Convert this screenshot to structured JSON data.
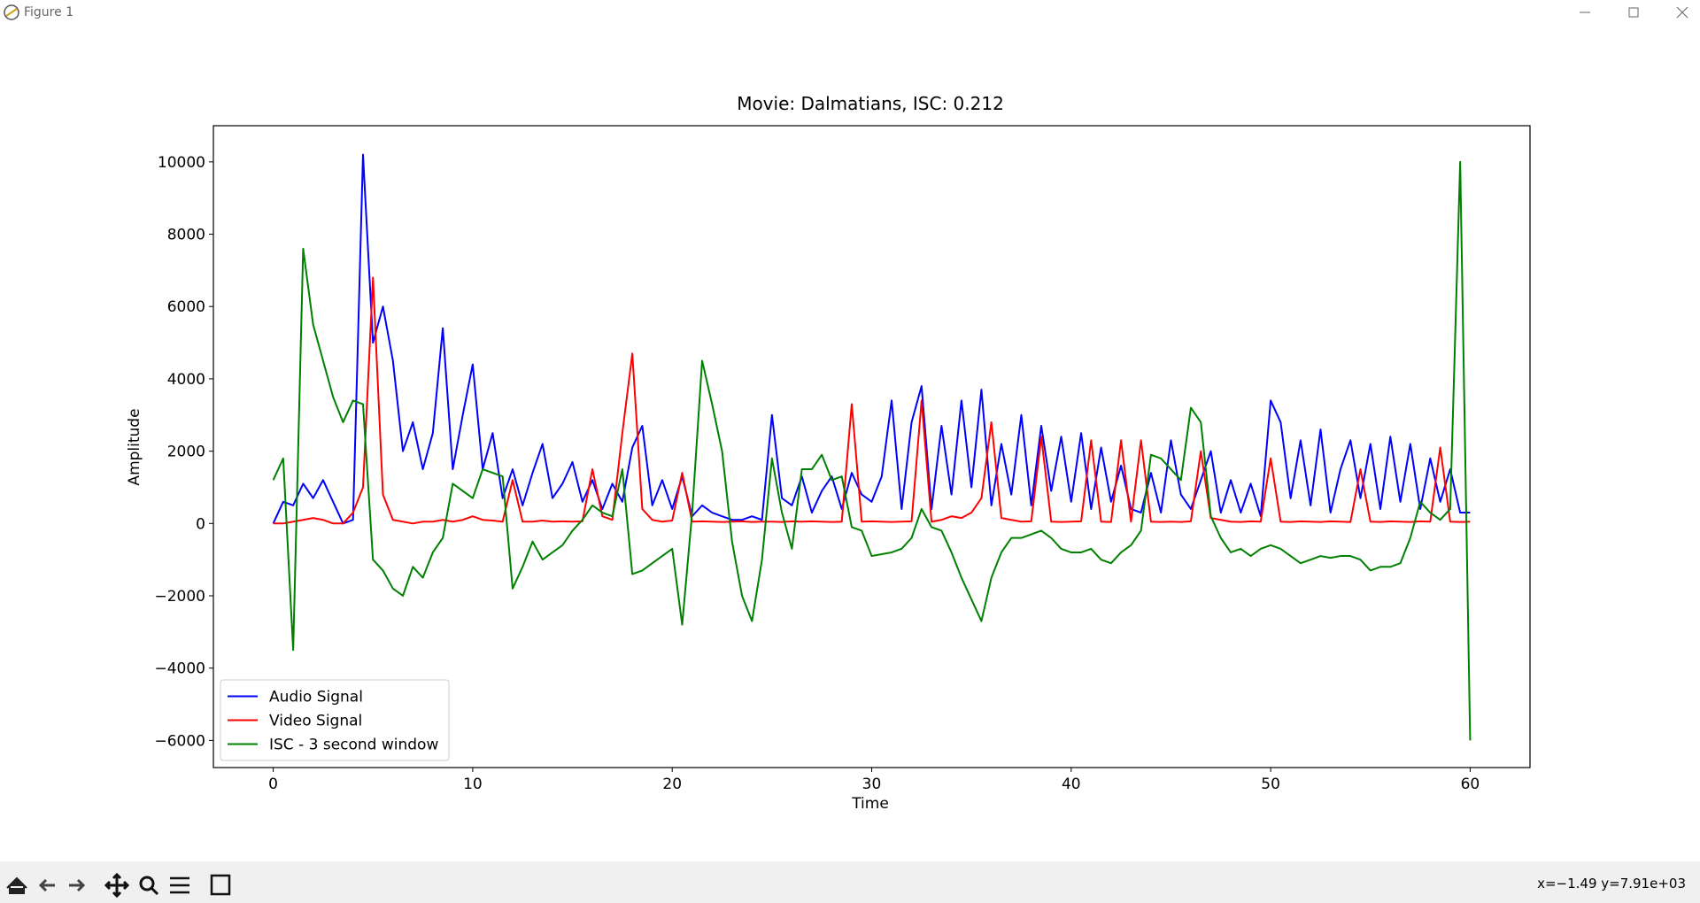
{
  "window": {
    "title": "Figure 1"
  },
  "status_bar": {
    "coordinates": "x=−1.49 y=7.91e+03"
  },
  "chart_data": {
    "type": "line",
    "title": "Movie: Dalmatians, ISC: 0.212",
    "xlabel": "Time",
    "ylabel": "Amplitude",
    "x": [
      0,
      0.5,
      1,
      1.5,
      2,
      2.5,
      3,
      3.5,
      4,
      4.5,
      5,
      5.5,
      6,
      6.5,
      7,
      7.5,
      8,
      8.5,
      9,
      9.5,
      10,
      10.5,
      11,
      11.5,
      12,
      12.5,
      13,
      13.5,
      14,
      14.5,
      15,
      15.5,
      16,
      16.5,
      17,
      17.5,
      18,
      18.5,
      19,
      19.5,
      20,
      20.5,
      21,
      21.5,
      22,
      22.5,
      23,
      23.5,
      24,
      24.5,
      25,
      25.5,
      26,
      26.5,
      27,
      27.5,
      28,
      28.5,
      29,
      29.5,
      30,
      30.5,
      31,
      31.5,
      32,
      32.5,
      33,
      33.5,
      34,
      34.5,
      35,
      35.5,
      36,
      36.5,
      37,
      37.5,
      38,
      38.5,
      39,
      39.5,
      40,
      40.5,
      41,
      41.5,
      42,
      42.5,
      43,
      43.5,
      44,
      44.5,
      45,
      45.5,
      46,
      46.5,
      47,
      47.5,
      48,
      48.5,
      49,
      49.5,
      50,
      50.5,
      51,
      51.5,
      52,
      52.5,
      53,
      53.5,
      54,
      54.5,
      55,
      55.5,
      56,
      56.5,
      57,
      57.5,
      58,
      58.5,
      59,
      59.5,
      60
    ],
    "series": [
      {
        "name": "Audio Signal",
        "color": "#0000ff",
        "values": [
          0,
          600,
          500,
          1100,
          700,
          1200,
          600,
          0,
          100,
          10200,
          5000,
          6000,
          4500,
          2000,
          2800,
          1500,
          2500,
          5400,
          1500,
          3000,
          4400,
          1500,
          2500,
          700,
          1500,
          500,
          1400,
          2200,
          700,
          1100,
          1700,
          600,
          1200,
          400,
          1100,
          600,
          2100,
          2700,
          500,
          1200,
          400,
          1300,
          200,
          500,
          300,
          200,
          100,
          100,
          200,
          100,
          3000,
          700,
          500,
          1300,
          300,
          900,
          1300,
          400,
          1400,
          800,
          600,
          1300,
          3400,
          400,
          2800,
          3800,
          400,
          2700,
          800,
          3400,
          1000,
          3700,
          500,
          2200,
          800,
          3000,
          500,
          2700,
          900,
          2400,
          600,
          2500,
          400,
          2100,
          600,
          1600,
          400,
          300,
          1400,
          300,
          2300,
          800,
          400,
          1200,
          2000,
          300,
          1200,
          300,
          1100,
          200,
          3400,
          2800,
          700,
          2300,
          500,
          2600,
          300,
          1500,
          2300,
          700,
          2200,
          400,
          2400,
          600,
          2200,
          400,
          1800,
          600,
          1500,
          300,
          300
        ]
      },
      {
        "name": "Video Signal",
        "color": "#ff0000",
        "values": [
          0,
          0,
          50,
          100,
          150,
          100,
          0,
          0,
          300,
          1000,
          6800,
          800,
          100,
          50,
          0,
          50,
          50,
          100,
          50,
          100,
          200,
          100,
          80,
          50,
          1200,
          50,
          50,
          80,
          50,
          60,
          50,
          60,
          1500,
          200,
          100,
          2500,
          4700,
          400,
          100,
          50,
          80,
          1400,
          50,
          60,
          50,
          40,
          50,
          60,
          40,
          50,
          50,
          40,
          60,
          50,
          60,
          50,
          40,
          50,
          3300,
          50,
          60,
          50,
          40,
          50,
          60,
          3400,
          50,
          100,
          200,
          150,
          300,
          700,
          2800,
          150,
          100,
          50,
          60,
          2400,
          50,
          40,
          50,
          60,
          2300,
          50,
          40,
          2300,
          50,
          2300,
          50,
          40,
          50,
          40,
          60,
          2000,
          150,
          100,
          50,
          40,
          60,
          50,
          1800,
          50,
          40,
          60,
          50,
          40,
          60,
          50,
          40,
          1500,
          50,
          40,
          60,
          50,
          40,
          60,
          50,
          2100,
          50,
          40,
          50
        ]
      },
      {
        "name": "ISC - 3 second window",
        "color": "#008000",
        "values": [
          1200,
          1800,
          -3500,
          7600,
          5500,
          4500,
          3500,
          2800,
          3400,
          3300,
          -1000,
          -1300,
          -1800,
          -2000,
          -1200,
          -1500,
          -800,
          -400,
          1100,
          900,
          700,
          1500,
          1400,
          1300,
          -1800,
          -1200,
          -500,
          -1000,
          -800,
          -600,
          -200,
          100,
          500,
          300,
          200,
          1500,
          -1400,
          -1300,
          -1100,
          -900,
          -700,
          -2800,
          300,
          4500,
          3300,
          2000,
          -500,
          -2000,
          -2700,
          -1000,
          1800,
          300,
          -700,
          1500,
          1500,
          1900,
          1200,
          1300,
          -100,
          -200,
          -900,
          -850,
          -800,
          -700,
          -400,
          400,
          -100,
          -200,
          -800,
          -1500,
          -2100,
          -2700,
          -1500,
          -800,
          -400,
          -400,
          -300,
          -200,
          -400,
          -700,
          -800,
          -800,
          -700,
          -1000,
          -1100,
          -800,
          -600,
          -200,
          1900,
          1800,
          1500,
          1200,
          3200,
          2800,
          200,
          -400,
          -800,
          -700,
          -900,
          -700,
          -600,
          -700,
          -900,
          -1100,
          -1000,
          -900,
          -950,
          -900,
          -900,
          -1000,
          -1300,
          -1200,
          -1200,
          -1100,
          -400,
          600,
          300,
          100,
          400,
          10000,
          -6000
        ]
      }
    ],
    "xlim": [
      -3,
      63
    ],
    "xticks": [
      0,
      10,
      20,
      30,
      40,
      50,
      60
    ],
    "ylim": [
      -6750,
      11000
    ],
    "yticks": [
      {
        "value": -6000,
        "label": "−6000"
      },
      {
        "value": -4000,
        "label": "−4000"
      },
      {
        "value": -2000,
        "label": "−2000"
      },
      0,
      2000,
      4000,
      6000,
      8000,
      10000
    ],
    "legend": "lower left",
    "grid": false
  }
}
